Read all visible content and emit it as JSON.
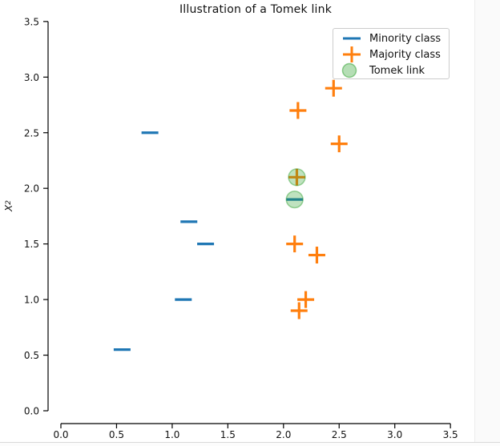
{
  "figure": {
    "title": "Illustration of a Tomek link",
    "ylabel_base": "X",
    "ylabel_sub": "2"
  },
  "legend": {
    "items": [
      {
        "label": "Minority class",
        "marker": "dash",
        "color": "#1f77b4"
      },
      {
        "label": "Majority class",
        "marker": "plus",
        "color": "#ff7f0e"
      },
      {
        "label": "Tomek link",
        "marker": "circle",
        "color": "#2ca02c"
      }
    ]
  },
  "chart_data": {
    "type": "scatter",
    "title": "Illustration of a Tomek link",
    "xlabel": "",
    "ylabel": "X_2",
    "xlim": [
      0.0,
      3.5
    ],
    "ylim": [
      0.0,
      3.5
    ],
    "xticks": [
      0.0,
      0.5,
      1.0,
      1.5,
      2.0,
      2.5,
      3.0,
      3.5
    ],
    "yticks": [
      0.0,
      0.5,
      1.0,
      1.5,
      2.0,
      2.5,
      3.0,
      3.5
    ],
    "xtick_labels": [
      "0.0",
      "0.5",
      "1.0",
      "1.5",
      "2.0",
      "2.5",
      "3.0",
      "3.5"
    ],
    "ytick_labels": [
      "0.0",
      "0.5",
      "1.0",
      "1.5",
      "2.0",
      "2.5",
      "3.0",
      "3.5"
    ],
    "grid": false,
    "legend_position": "upper right",
    "axis_color": "#000000",
    "series": [
      {
        "name": "Minority class",
        "marker": "_",
        "color": "#1f77b4",
        "points": [
          [
            1.1,
            1.0
          ],
          [
            1.3,
            1.5
          ],
          [
            1.15,
            1.7
          ],
          [
            0.8,
            2.5
          ],
          [
            0.55,
            0.55
          ],
          [
            2.1,
            1.9
          ]
        ]
      },
      {
        "name": "Majority class",
        "marker": "+",
        "color": "#ff7f0e",
        "points": [
          [
            2.1,
            1.5
          ],
          [
            2.12,
            2.1
          ],
          [
            2.13,
            2.7
          ],
          [
            2.14,
            0.9
          ],
          [
            2.2,
            1.0
          ],
          [
            2.3,
            1.4
          ],
          [
            2.5,
            2.4
          ],
          [
            2.45,
            2.9
          ]
        ]
      },
      {
        "name": "Tomek link",
        "marker": "o",
        "color": "#2ca02c",
        "alpha": 0.3,
        "points": [
          [
            2.1,
            1.9
          ],
          [
            2.12,
            2.1
          ]
        ]
      }
    ]
  }
}
